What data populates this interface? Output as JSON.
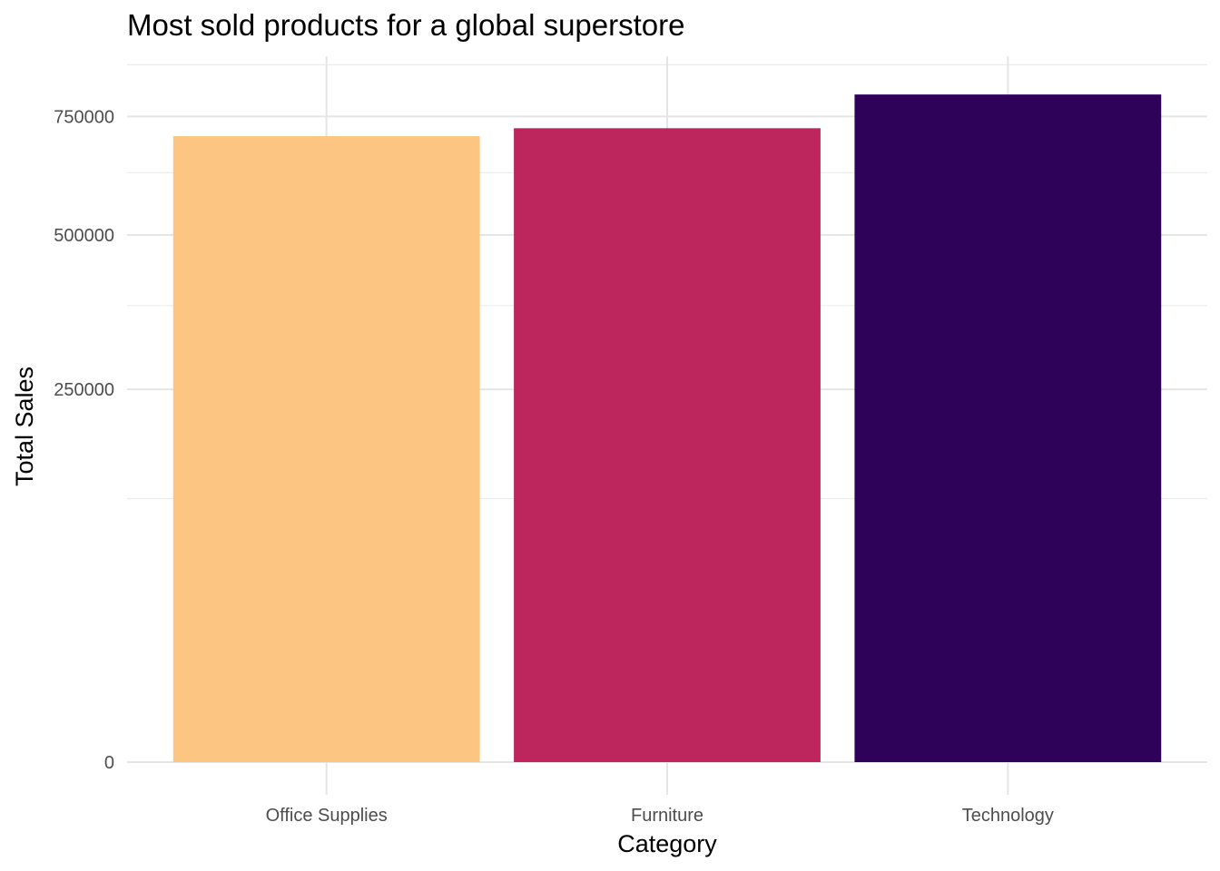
{
  "chart_data": {
    "type": "bar",
    "title": "Most sold products for a global superstore",
    "xlabel": "Category",
    "ylabel": "Total Sales",
    "categories": [
      "Office Supplies",
      "Furniture",
      "Technology"
    ],
    "values": [
      705000,
      723000,
      802000
    ],
    "colors": [
      "#fcc582",
      "#bc265d",
      "#2e0259"
    ],
    "y_scale": "sqrt",
    "yticks": [
      0,
      250000,
      500000,
      750000
    ],
    "ytick_labels": [
      "0",
      "250000",
      "500000",
      "750000"
    ],
    "ylim": [
      0,
      860000
    ],
    "grid": true,
    "legend": "none"
  }
}
